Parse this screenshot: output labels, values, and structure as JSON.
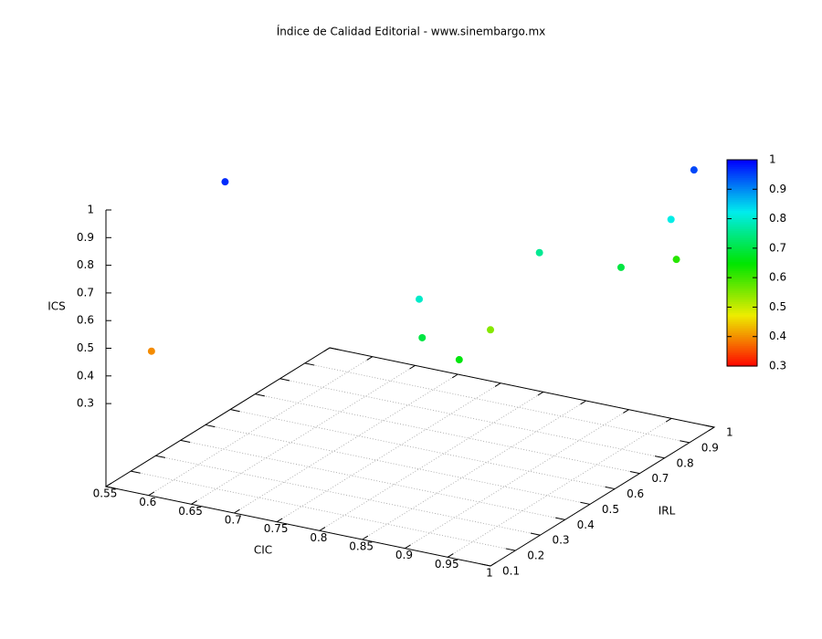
{
  "chart_data": {
    "type": "scatter3d",
    "title": "Índice de Calidad Editorial - www.sinembargo.mx",
    "xlabel": "CIC",
    "ylabel": "IRL",
    "zlabel": "ICS",
    "x": [
      0.555,
      0.603,
      0.99,
      0.989,
      0.897,
      0.966,
      0.972,
      0.873,
      0.891,
      0.939,
      0.881
    ],
    "y": [
      0.266,
      0.397,
      0.953,
      0.864,
      0.651,
      0.742,
      0.944,
      0.25,
      0.2,
      0.184,
      0.509
    ],
    "z": [
      0.4,
      0.97,
      0.95,
      0.82,
      0.76,
      0.7,
      0.62,
      0.8,
      0.7,
      0.66,
      0.55
    ],
    "xlim": [
      0.55,
      1
    ],
    "ylim": [
      0.1,
      1
    ],
    "zlim": [
      0,
      1
    ],
    "xticks": [
      0.55,
      0.6,
      0.65,
      0.7,
      0.75,
      0.8,
      0.85,
      0.9,
      0.95,
      1
    ],
    "yticks": [
      0.1,
      0.2,
      0.3,
      0.4,
      0.5,
      0.6,
      0.7,
      0.8,
      0.9,
      1
    ],
    "zticks": [
      0.3,
      0.4,
      0.5,
      0.6,
      0.7,
      0.8,
      0.9,
      1
    ],
    "cblim": [
      0.3,
      1
    ],
    "cbticks": [
      0.3,
      0.4,
      0.5,
      0.6,
      0.7,
      0.8,
      0.9,
      1
    ],
    "palette": "rainbow",
    "grid": true
  }
}
